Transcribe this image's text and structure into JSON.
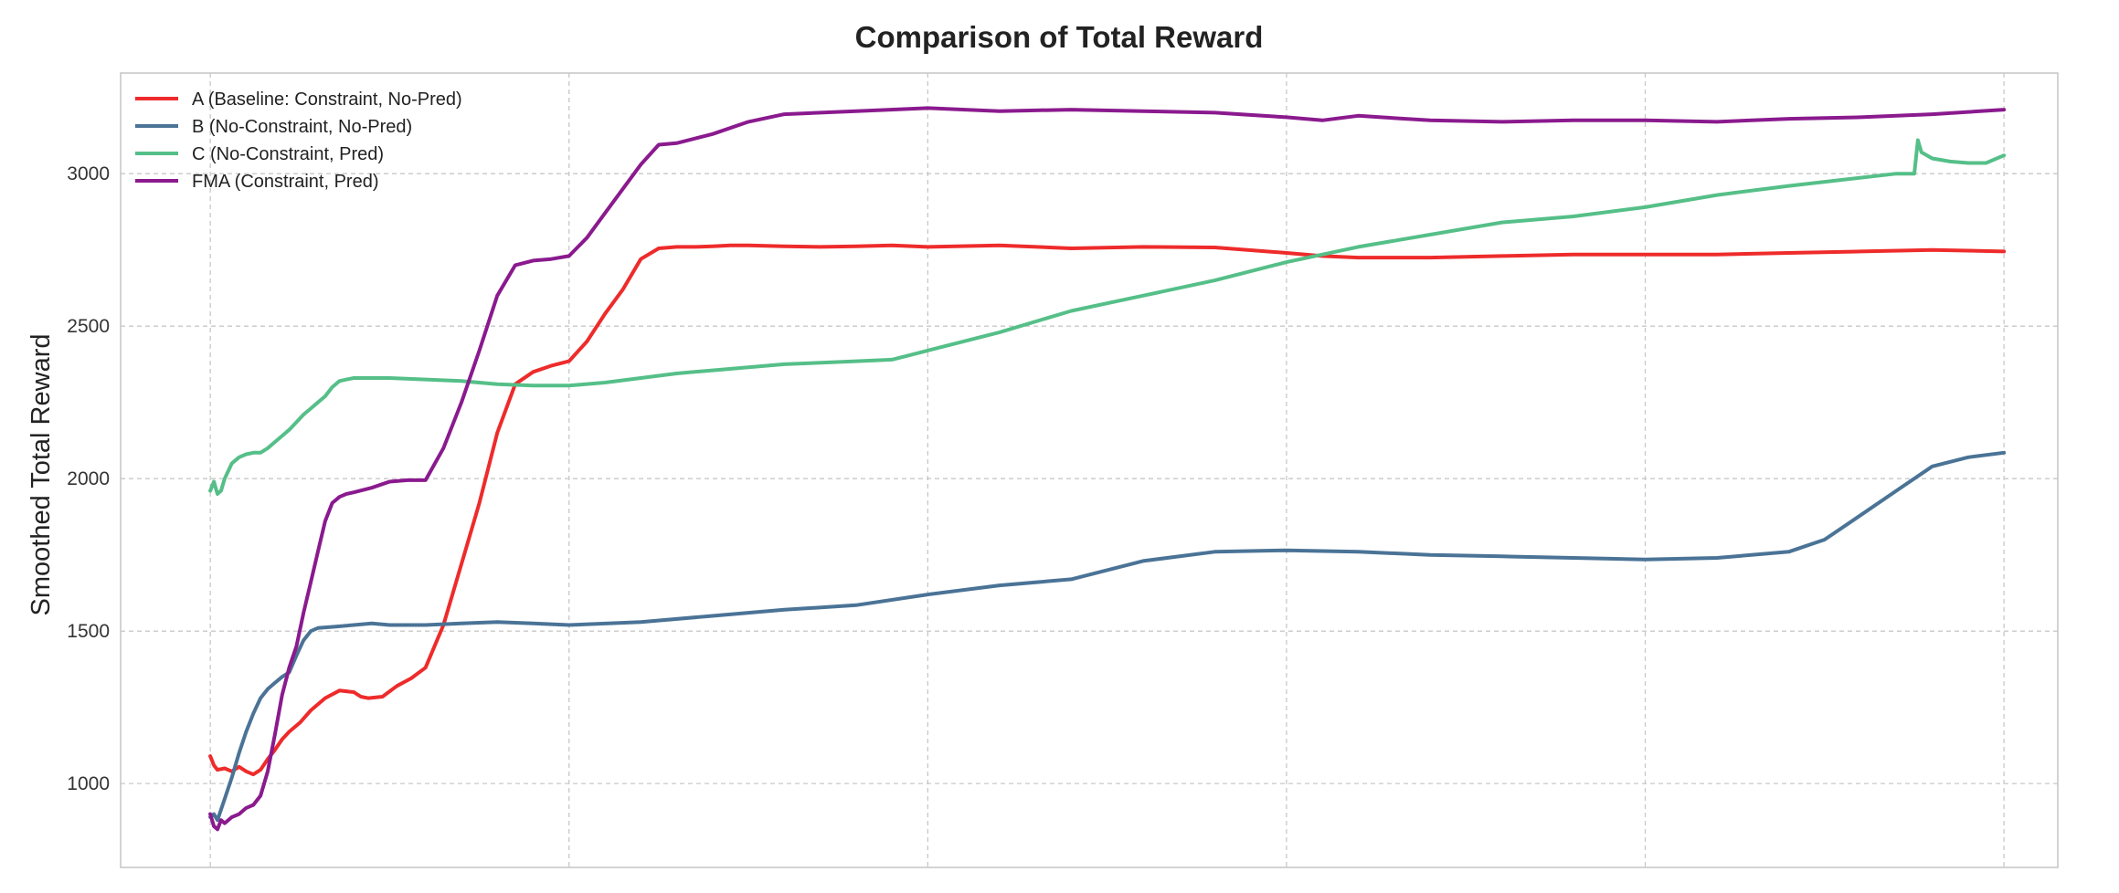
{
  "chart_data": {
    "type": "line",
    "title": "Comparison of Total Reward",
    "xlabel": "",
    "ylabel": "Smoothed Total Reward",
    "x_ticks": [
      0,
      100,
      200,
      300,
      400,
      500
    ],
    "xlim": [
      -25,
      515
    ],
    "ylim": [
      725,
      3330
    ],
    "y_ticks": [
      1000,
      1500,
      2000,
      2500,
      3000
    ],
    "y_tick_labels": [
      "1000",
      "1500",
      "2000",
      "2500",
      "3000"
    ],
    "grid": true,
    "legend_location": "top-left",
    "series": [
      {
        "name": "A (Baseline: Constraint, No-Pred)",
        "color": "#ee2b2b",
        "x": [
          0,
          1,
          2,
          4,
          6,
          8,
          10,
          12,
          14,
          16,
          18,
          20,
          22,
          25,
          28,
          32,
          36,
          40,
          42,
          44,
          48,
          52,
          56,
          60,
          65,
          70,
          75,
          80,
          85,
          90,
          95,
          100,
          105,
          110,
          115,
          120,
          125,
          130,
          135,
          140,
          145,
          150,
          160,
          170,
          180,
          190,
          200,
          220,
          240,
          260,
          280,
          300,
          310,
          320,
          340,
          360,
          380,
          400,
          420,
          440,
          460,
          480,
          500
        ],
        "y": [
          1090,
          1060,
          1045,
          1050,
          1040,
          1055,
          1040,
          1030,
          1045,
          1080,
          1110,
          1145,
          1170,
          1200,
          1240,
          1280,
          1305,
          1300,
          1285,
          1280,
          1285,
          1320,
          1345,
          1380,
          1520,
          1720,
          1920,
          2150,
          2310,
          2350,
          2370,
          2385,
          2450,
          2540,
          2620,
          2720,
          2755,
          2760,
          2760,
          2762,
          2765,
          2765,
          2762,
          2760,
          2762,
          2765,
          2760,
          2765,
          2755,
          2760,
          2758,
          2740,
          2730,
          2725,
          2725,
          2730,
          2735,
          2735,
          2735,
          2740,
          2745,
          2750,
          2745
        ]
      },
      {
        "name": "B (No-Constraint, No-Pred)",
        "color": "#4a7396",
        "x": [
          0,
          1,
          2,
          4,
          6,
          8,
          10,
          12,
          14,
          16,
          18,
          20,
          22,
          24,
          26,
          28,
          30,
          35,
          40,
          45,
          50,
          60,
          70,
          80,
          90,
          100,
          120,
          140,
          160,
          180,
          200,
          220,
          240,
          260,
          280,
          300,
          320,
          340,
          360,
          380,
          400,
          420,
          440,
          450,
          460,
          470,
          480,
          490,
          500
        ],
        "y": [
          890,
          900,
          880,
          950,
          1020,
          1100,
          1170,
          1230,
          1280,
          1310,
          1330,
          1350,
          1365,
          1420,
          1470,
          1500,
          1510,
          1515,
          1520,
          1525,
          1520,
          1520,
          1525,
          1530,
          1525,
          1520,
          1530,
          1550,
          1570,
          1585,
          1620,
          1650,
          1670,
          1730,
          1760,
          1765,
          1760,
          1750,
          1745,
          1740,
          1735,
          1740,
          1760,
          1800,
          1880,
          1960,
          2040,
          2070,
          2085
        ]
      },
      {
        "name": "C (No-Constraint, Pred)",
        "color": "#55bf88",
        "x": [
          0,
          1,
          2,
          3,
          4,
          6,
          8,
          10,
          12,
          14,
          16,
          18,
          20,
          22,
          24,
          26,
          28,
          30,
          32,
          34,
          36,
          38,
          40,
          45,
          50,
          60,
          70,
          80,
          90,
          100,
          110,
          120,
          130,
          140,
          160,
          180,
          190,
          200,
          220,
          240,
          260,
          280,
          300,
          320,
          340,
          360,
          380,
          400,
          420,
          440,
          470,
          475,
          476,
          477,
          480,
          485,
          490,
          495,
          500
        ],
        "y": [
          1960,
          1990,
          1950,
          1960,
          2000,
          2050,
          2070,
          2080,
          2085,
          2085,
          2100,
          2120,
          2140,
          2160,
          2185,
          2210,
          2230,
          2250,
          2270,
          2300,
          2320,
          2325,
          2330,
          2330,
          2330,
          2325,
          2320,
          2310,
          2305,
          2305,
          2315,
          2330,
          2345,
          2355,
          2375,
          2385,
          2390,
          2420,
          2480,
          2550,
          2600,
          2650,
          2710,
          2760,
          2800,
          2840,
          2860,
          2890,
          2930,
          2960,
          3000,
          3000,
          3110,
          3070,
          3050,
          3040,
          3035,
          3035,
          3060
        ]
      },
      {
        "name": "FMA (Constraint, Pred)",
        "color": "#8a1a8e",
        "x": [
          0,
          1,
          2,
          3,
          4,
          6,
          8,
          10,
          12,
          14,
          16,
          18,
          20,
          22,
          24,
          26,
          28,
          30,
          32,
          34,
          36,
          38,
          40,
          45,
          50,
          55,
          60,
          65,
          70,
          75,
          80,
          85,
          90,
          95,
          100,
          105,
          110,
          115,
          120,
          125,
          130,
          140,
          150,
          160,
          180,
          200,
          220,
          240,
          260,
          280,
          300,
          310,
          320,
          340,
          360,
          380,
          400,
          420,
          440,
          460,
          480,
          500
        ],
        "y": [
          900,
          860,
          850,
          880,
          870,
          890,
          900,
          920,
          930,
          960,
          1040,
          1160,
          1290,
          1380,
          1450,
          1560,
          1660,
          1760,
          1860,
          1920,
          1940,
          1950,
          1955,
          1970,
          1990,
          1995,
          1995,
          2100,
          2250,
          2420,
          2600,
          2700,
          2715,
          2720,
          2730,
          2790,
          2870,
          2950,
          3030,
          3095,
          3100,
          3130,
          3170,
          3195,
          3205,
          3215,
          3205,
          3210,
          3205,
          3200,
          3185,
          3175,
          3190,
          3175,
          3170,
          3175,
          3175,
          3170,
          3180,
          3185,
          3195,
          3210
        ]
      }
    ]
  }
}
